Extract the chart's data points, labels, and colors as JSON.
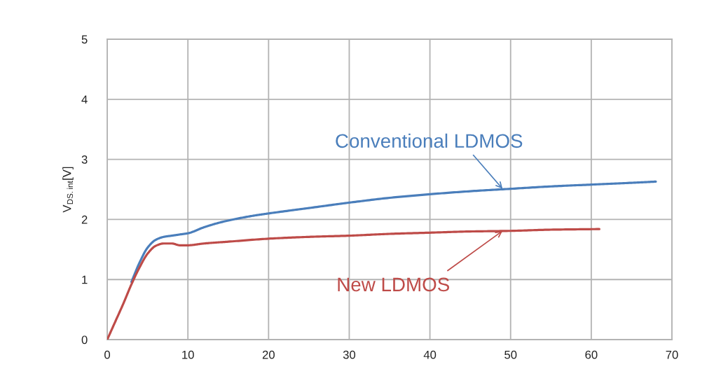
{
  "chart_data": {
    "type": "line",
    "ylabel": "V$_{DS.int}$[V]",
    "xlim": [
      0,
      70
    ],
    "xticks": [
      0,
      10,
      20,
      30,
      40,
      50,
      60,
      70
    ],
    "ylim": [
      0,
      5
    ],
    "yticks": [
      0,
      1,
      2,
      3,
      4,
      5
    ],
    "grid": true,
    "marker": "none",
    "line_style": "solid",
    "series": [
      {
        "color": "#4a7ebb",
        "x": [
          3,
          4,
          5,
          6,
          7,
          8,
          9,
          10,
          12,
          14,
          16,
          18,
          20,
          25,
          30,
          35,
          40,
          45,
          50,
          55,
          60,
          65,
          68
        ],
        "values": [
          0.96,
          1.28,
          1.53,
          1.66,
          1.71,
          1.73,
          1.75,
          1.77,
          1.87,
          1.95,
          2.01,
          2.06,
          2.1,
          2.19,
          2.28,
          2.36,
          2.42,
          2.47,
          2.51,
          2.55,
          2.58,
          2.61,
          2.63
        ]
      },
      {
        "color": "#be4b48",
        "x": [
          0,
          1,
          2,
          3,
          4,
          5,
          6,
          7,
          8,
          9,
          10,
          12,
          15,
          20,
          25,
          30,
          35,
          40,
          45,
          50,
          55,
          61
        ],
        "values": [
          0,
          0.3,
          0.6,
          0.92,
          1.2,
          1.43,
          1.56,
          1.6,
          1.6,
          1.57,
          1.57,
          1.6,
          1.63,
          1.68,
          1.71,
          1.73,
          1.76,
          1.78,
          1.8,
          1.81,
          1.83,
          1.84
        ]
      }
    ],
    "annotations": [
      {
        "text": "Conventional LDMOS",
        "x": 49,
        "y": 2.51
      },
      {
        "text": "New LDMOS",
        "x": 49,
        "y": 1.81
      }
    ]
  }
}
